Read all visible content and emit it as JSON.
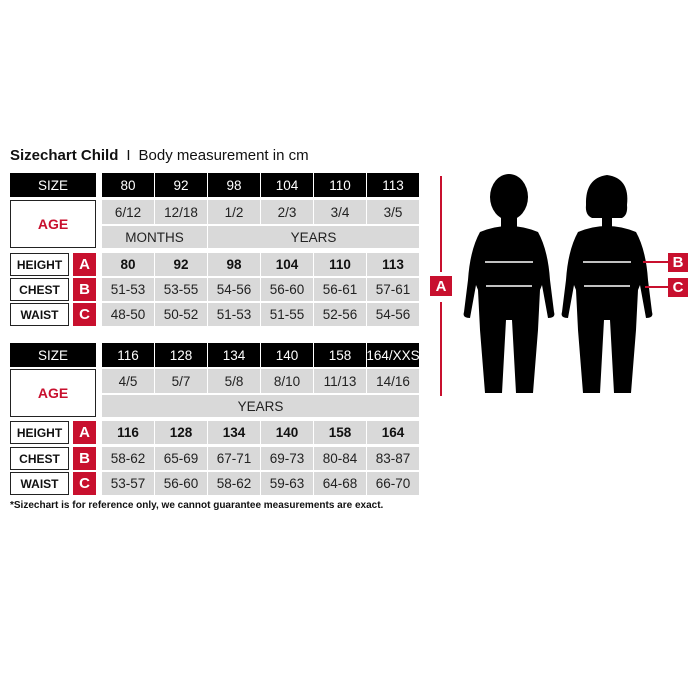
{
  "header": {
    "title": "Sizechart Child",
    "separator": "I",
    "subtitle": "Body measurement in cm"
  },
  "labels": {
    "size": "SIZE",
    "age": "AGE",
    "height": "HEIGHT",
    "chest": "CHEST",
    "waist": "WAIST",
    "badge_height": "A",
    "badge_chest": "B",
    "badge_waist": "C"
  },
  "tables": [
    {
      "sizes": [
        "80",
        "92",
        "98",
        "104",
        "110",
        "113"
      ],
      "ages": [
        "6/12",
        "12/18",
        "1/2",
        "2/3",
        "3/4",
        "3/5"
      ],
      "age_units": [
        {
          "label": "MONTHS",
          "span": 2
        },
        {
          "label": "YEARS",
          "span": 4
        }
      ],
      "height": [
        "80",
        "92",
        "98",
        "104",
        "110",
        "113"
      ],
      "chest": [
        "51-53",
        "53-55",
        "54-56",
        "56-60",
        "56-61",
        "57-61"
      ],
      "waist": [
        "48-50",
        "50-52",
        "51-53",
        "51-55",
        "52-56",
        "54-56"
      ]
    },
    {
      "sizes": [
        "116",
        "128",
        "134",
        "140",
        "158",
        "164/XXS"
      ],
      "ages": [
        "4/5",
        "5/7",
        "5/8",
        "8/10",
        "11/13",
        "14/16"
      ],
      "age_units": [
        {
          "label": "YEARS",
          "span": 6
        }
      ],
      "height": [
        "116",
        "128",
        "134",
        "140",
        "158",
        "164"
      ],
      "chest": [
        "58-62",
        "65-69",
        "67-71",
        "69-73",
        "80-84",
        "83-87"
      ],
      "waist": [
        "53-57",
        "56-60",
        "58-62",
        "59-63",
        "64-68",
        "66-70"
      ]
    }
  ],
  "footnote": "*Sizechart is for reference only, we cannot guarantee measurements are exact.",
  "figure": {
    "label_a": "A",
    "label_b": "B",
    "label_c": "C"
  },
  "colors": {
    "accent": "#c8102e",
    "header_bg": "#000000",
    "cell_bg": "#d9d9d9"
  }
}
